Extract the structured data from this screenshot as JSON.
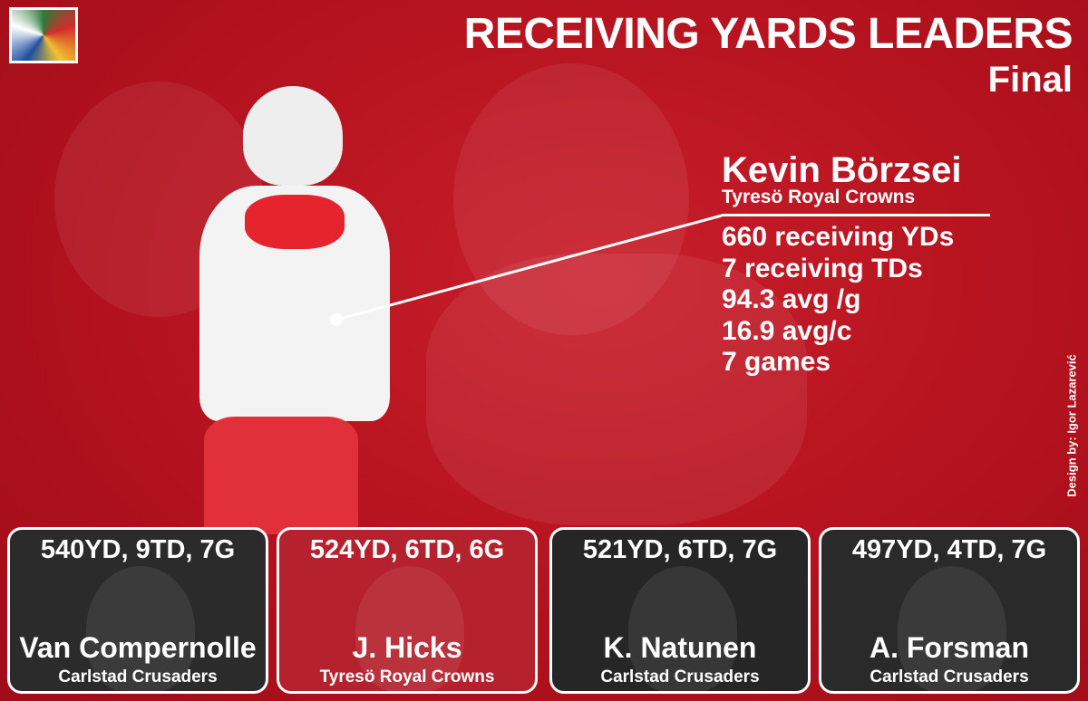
{
  "header": {
    "title": "RECEIVING YARDS LEADERS",
    "subtitle": "Final"
  },
  "leader": {
    "name": "Kevin Börzsei",
    "team": "Tyresö Royal Crowns",
    "stats": [
      "660 receiving YDs",
      "7 receiving TDs",
      "94.3 avg /g",
      "16.9 avg/c",
      "7 games"
    ]
  },
  "runners_up": [
    {
      "stats": "540YD, 9TD, 7G",
      "name": "Van Compernolle",
      "team": "Carlstad Crusaders"
    },
    {
      "stats": "524YD, 6TD, 6G",
      "name": "J. Hicks",
      "team": "Tyresö Royal Crowns"
    },
    {
      "stats": "521YD, 6TD, 7G",
      "name": "K. Natunen",
      "team": "Carlstad Crusaders"
    },
    {
      "stats": "497YD, 4TD, 7G",
      "name": "A. Forsman",
      "team": "Carlstad Crusaders"
    }
  ],
  "credit": "Design by: Igor Lazarević"
}
